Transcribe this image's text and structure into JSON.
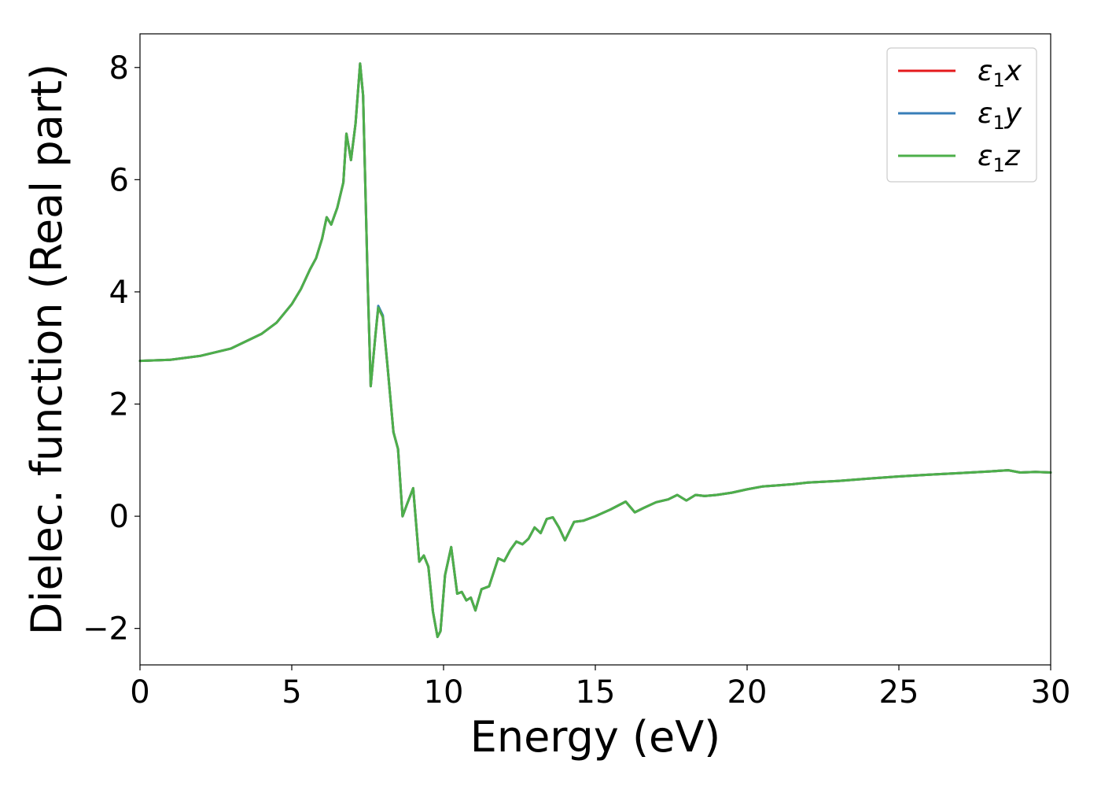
{
  "chart_data": {
    "type": "line",
    "title": "",
    "xlabel": "Energy (eV)",
    "ylabel": "Dielec. function (Real part)",
    "xlim": [
      0,
      30
    ],
    "ylim": [
      -2.65,
      8.6
    ],
    "xticks": [
      0,
      5,
      10,
      15,
      20,
      25,
      30
    ],
    "xtick_labels": [
      "0",
      "5",
      "10",
      "15",
      "20",
      "25",
      "30"
    ],
    "yticks": [
      -2,
      0,
      2,
      4,
      6,
      8
    ],
    "ytick_labels": [
      "−2",
      "0",
      "2",
      "4",
      "6",
      "8"
    ],
    "grid": false,
    "legend_position": "top-right",
    "x": [
      0,
      1,
      2,
      3,
      4,
      4.5,
      5,
      5.3,
      5.6,
      5.8,
      6.0,
      6.15,
      6.3,
      6.5,
      6.7,
      6.8,
      6.95,
      7.1,
      7.25,
      7.35,
      7.5,
      7.6,
      7.75,
      7.85,
      8.0,
      8.15,
      8.35,
      8.5,
      8.65,
      8.8,
      9.0,
      9.2,
      9.35,
      9.5,
      9.65,
      9.8,
      9.9,
      10.05,
      10.25,
      10.45,
      10.6,
      10.75,
      10.9,
      11.05,
      11.25,
      11.5,
      11.8,
      12.0,
      12.2,
      12.4,
      12.6,
      12.8,
      13.0,
      13.2,
      13.4,
      13.6,
      13.8,
      14.0,
      14.3,
      14.6,
      15.0,
      15.5,
      16.0,
      16.3,
      16.6,
      17.0,
      17.4,
      17.7,
      18.0,
      18.3,
      18.6,
      19.0,
      19.5,
      20.0,
      20.5,
      21.0,
      21.5,
      22.0,
      23.0,
      24.0,
      25.0,
      26.0,
      27.0,
      28.0,
      28.6,
      29.0,
      29.5,
      30.0
    ],
    "series": [
      {
        "name": "ε1x",
        "color": "#e41a1c",
        "values": [
          2.77,
          2.79,
          2.86,
          2.99,
          3.25,
          3.45,
          3.78,
          4.05,
          4.4,
          4.6,
          4.95,
          5.33,
          5.2,
          5.5,
          5.95,
          6.82,
          6.35,
          7.0,
          8.07,
          7.5,
          4.2,
          2.32,
          3.2,
          3.72,
          3.55,
          2.7,
          1.5,
          1.2,
          0.0,
          0.22,
          0.5,
          -0.81,
          -0.7,
          -0.9,
          -1.7,
          -2.15,
          -2.05,
          -1.05,
          -0.55,
          -1.38,
          -1.35,
          -1.5,
          -1.45,
          -1.68,
          -1.3,
          -1.25,
          -0.75,
          -0.8,
          -0.6,
          -0.45,
          -0.5,
          -0.4,
          -0.2,
          -0.3,
          -0.05,
          -0.02,
          -0.2,
          -0.43,
          -0.1,
          -0.08,
          0.0,
          0.12,
          0.26,
          0.07,
          0.15,
          0.25,
          0.3,
          0.38,
          0.28,
          0.38,
          0.36,
          0.38,
          0.42,
          0.48,
          0.53,
          0.55,
          0.57,
          0.6,
          0.63,
          0.67,
          0.71,
          0.74,
          0.77,
          0.8,
          0.82,
          0.78,
          0.79,
          0.78
        ]
      },
      {
        "name": "ε1y",
        "color": "#377eb8",
        "values": [
          2.77,
          2.79,
          2.86,
          2.99,
          3.25,
          3.45,
          3.78,
          4.05,
          4.4,
          4.6,
          4.95,
          5.33,
          5.2,
          5.5,
          5.95,
          6.82,
          6.35,
          7.0,
          8.07,
          7.5,
          4.2,
          2.32,
          3.2,
          3.75,
          3.58,
          2.7,
          1.5,
          1.2,
          0.0,
          0.22,
          0.5,
          -0.81,
          -0.7,
          -0.9,
          -1.7,
          -2.15,
          -2.05,
          -1.05,
          -0.55,
          -1.38,
          -1.35,
          -1.5,
          -1.45,
          -1.68,
          -1.3,
          -1.25,
          -0.75,
          -0.8,
          -0.6,
          -0.45,
          -0.5,
          -0.4,
          -0.2,
          -0.3,
          -0.05,
          -0.02,
          -0.2,
          -0.43,
          -0.1,
          -0.08,
          0.0,
          0.12,
          0.26,
          0.07,
          0.15,
          0.25,
          0.3,
          0.38,
          0.28,
          0.38,
          0.36,
          0.38,
          0.42,
          0.48,
          0.53,
          0.55,
          0.57,
          0.6,
          0.63,
          0.67,
          0.71,
          0.74,
          0.77,
          0.8,
          0.82,
          0.78,
          0.79,
          0.78
        ]
      },
      {
        "name": "ε1z",
        "color": "#4daf4a",
        "values": [
          2.77,
          2.79,
          2.86,
          2.99,
          3.25,
          3.45,
          3.78,
          4.05,
          4.4,
          4.6,
          4.95,
          5.33,
          5.2,
          5.5,
          5.95,
          6.82,
          6.35,
          7.0,
          8.07,
          7.5,
          4.2,
          2.32,
          3.2,
          3.72,
          3.55,
          2.7,
          1.5,
          1.2,
          0.0,
          0.22,
          0.5,
          -0.81,
          -0.7,
          -0.9,
          -1.7,
          -2.15,
          -2.05,
          -1.05,
          -0.55,
          -1.38,
          -1.35,
          -1.5,
          -1.45,
          -1.68,
          -1.3,
          -1.25,
          -0.75,
          -0.8,
          -0.6,
          -0.45,
          -0.5,
          -0.4,
          -0.2,
          -0.3,
          -0.05,
          -0.02,
          -0.2,
          -0.43,
          -0.1,
          -0.08,
          0.0,
          0.12,
          0.26,
          0.07,
          0.15,
          0.25,
          0.3,
          0.38,
          0.28,
          0.38,
          0.36,
          0.38,
          0.42,
          0.48,
          0.53,
          0.55,
          0.57,
          0.6,
          0.63,
          0.67,
          0.71,
          0.74,
          0.77,
          0.8,
          0.82,
          0.78,
          0.79,
          0.78
        ]
      }
    ],
    "legend": [
      {
        "base": "ε",
        "sub": "1",
        "suffix": "x",
        "color": "#e41a1c"
      },
      {
        "base": "ε",
        "sub": "1",
        "suffix": "y",
        "color": "#377eb8"
      },
      {
        "base": "ε",
        "sub": "1",
        "suffix": "z",
        "color": "#4daf4a"
      }
    ]
  }
}
